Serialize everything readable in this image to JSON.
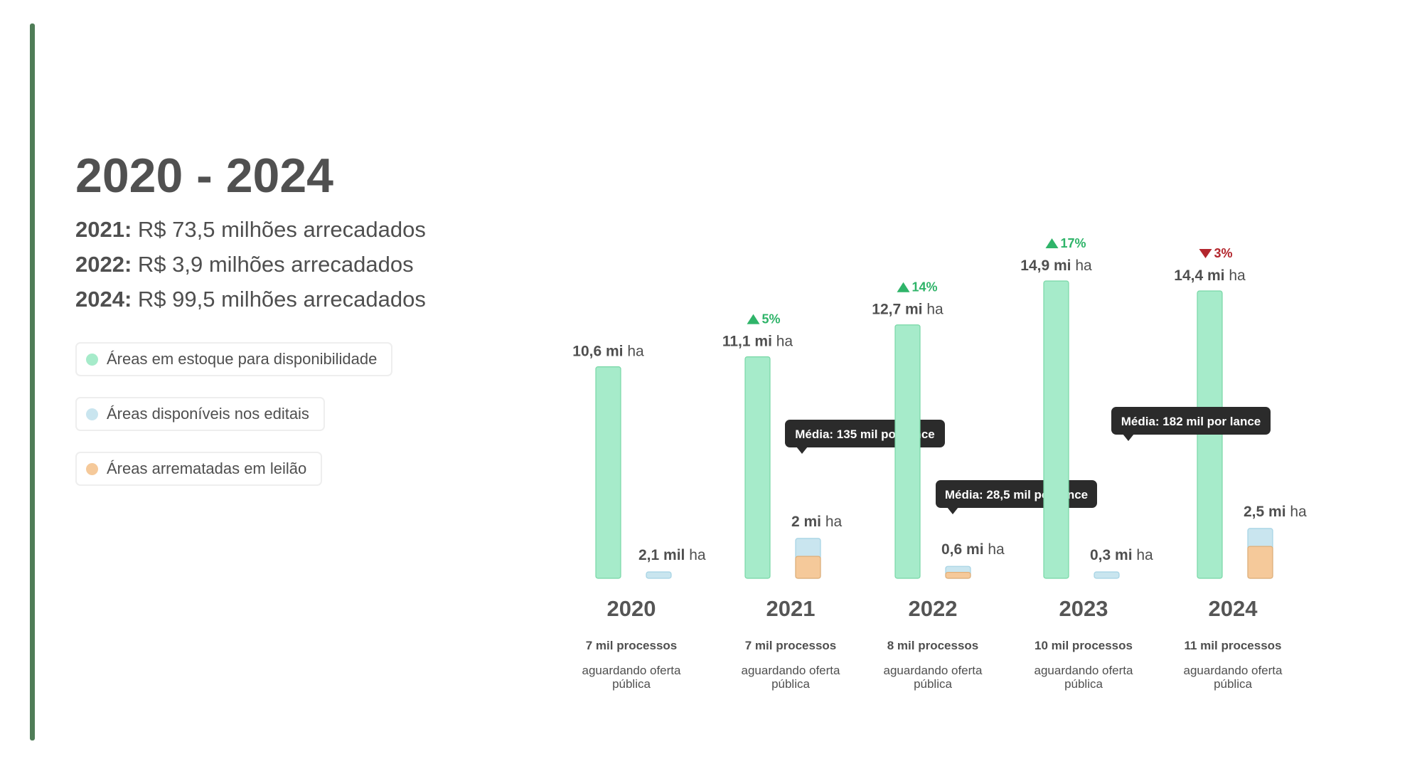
{
  "header": {
    "title": "2020 - 2024"
  },
  "summary": [
    {
      "year": "2021:",
      "text": " R$ 73,5 milhões arrecadados"
    },
    {
      "year": "2022:",
      "text": " R$ 3,9 milhões arrecadados"
    },
    {
      "year": "2024:",
      "text": " R$ 99,5 milhões arrecadados"
    }
  ],
  "legend": [
    {
      "label": "Áreas em estoque para disponibilidade",
      "color": "#a6ebca"
    },
    {
      "label": "Áreas disponíveis nos editais",
      "color": "#c9e5ef"
    },
    {
      "label": "Áreas arrematadas em leilão",
      "color": "#f5c99a"
    }
  ],
  "colors": {
    "stock": "#a6ebca",
    "stock_border": "#78d7a6",
    "available": "#c9e5ef",
    "available_border": "#a4d2e4",
    "auctioned": "#f5c99a",
    "auctioned_border": "#e0ad76",
    "increase": "#2fb469",
    "decrease": "#b3262d",
    "tooltip_bg": "#2b2b2b",
    "text": "#4f4f4f"
  },
  "chart_data": {
    "type": "bar",
    "unit": "ha",
    "categories": [
      "2020",
      "2021",
      "2022",
      "2023",
      "2024"
    ],
    "series": [
      {
        "name": "Áreas em estoque para disponibilidade",
        "values": [
          10.6,
          11.1,
          12.7,
          14.9,
          14.4
        ],
        "labels": [
          "10,6 mi",
          "11,1 mi",
          "12,7 mi",
          "14,9 mi",
          "14,4 mi"
        ]
      },
      {
        "name": "Áreas disponíveis nos editais",
        "values": [
          0.0021,
          2.0,
          0.6,
          0.3,
          2.5
        ],
        "labels": [
          "2,1 mil",
          "2 mi",
          "0,6 mi",
          "0,3 mi",
          "2,5 mi"
        ]
      },
      {
        "name": "Áreas arrematadas em leilão",
        "values": [
          0,
          1.1,
          0.3,
          0,
          1.6
        ]
      }
    ],
    "changes": [
      null,
      {
        "direction": "up",
        "label": "5%"
      },
      {
        "direction": "up",
        "label": "14%"
      },
      {
        "direction": "up",
        "label": "17%"
      },
      {
        "direction": "down",
        "label": "3%"
      }
    ],
    "tooltips": [
      null,
      "Média: 135 mil por lance",
      "Média: 28,5 mil por lance",
      null,
      "Média: 182 mil por lance"
    ],
    "processes": [
      {
        "count": "7 mil processos",
        "note": "aguardando oferta pública"
      },
      {
        "count": "7 mil processos",
        "note": "aguardando oferta pública"
      },
      {
        "count": "8 mil processos",
        "note": "aguardando oferta pública"
      },
      {
        "count": "10 mil processos",
        "note": "aguardando oferta pública"
      },
      {
        "count": "11 mil processos",
        "note": "aguardando oferta pública"
      }
    ],
    "ylim": [
      0,
      14.9
    ],
    "grid": false
  }
}
